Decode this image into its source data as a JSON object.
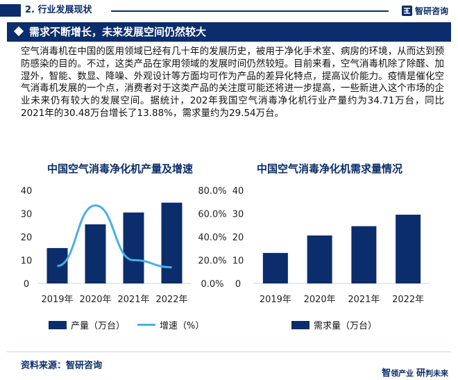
{
  "header": {
    "section_label": "2. 行业发展现状",
    "brand_name": "智研咨询"
  },
  "banner": {
    "title": "需求不断增长，未来发展空间仍然较大"
  },
  "body_text": "空气消毒机在中国的医用领域已经有几十年的发展历史，被用于净化手术室、病房的环境，从而达到预防感染的目的。不过，这类产品在家用领域的发展时间仍然较短。目前来看，空气消毒机除了除醛、加湿外，智能、数显、降噪、外观设计等方面均可作为产品的差异化特点，提高议价能力。疫情是催化空气消毒机发展的一个点，消费者对于这类产品的关注度可能还将进一步提高，一些新进入这个市场的企业未来仍有较大的发展空间。据统计，202年我国空气消毒净化机行业产量约为34.71万台，同比2021年的30.48万台增长了13.88%，需求量约为29.54万台。",
  "footer": {
    "source": "资料来源：智研咨询",
    "slogan_a1": "智",
    "slogan_a2": "领产业",
    "slogan_b1": "研",
    "slogan_b2": "判未来"
  },
  "colors": {
    "navy": "#0b2d6b",
    "line_blue": "#4aaee5"
  },
  "chart_data": [
    {
      "type": "bar",
      "title": "中国空气消毒净化机产量及增速",
      "categories": [
        "2019年",
        "2020年",
        "2021年",
        "2022年"
      ],
      "series": [
        {
          "name": "产量（万台）",
          "type": "bar",
          "axis": "left",
          "values": [
            15.2,
            25.4,
            30.48,
            34.71
          ]
        },
        {
          "name": "增速（%）",
          "type": "line",
          "axis": "right",
          "values": [
            0.15,
            0.67,
            0.2,
            0.1388
          ]
        }
      ],
      "y_left": {
        "ylim": [
          0,
          40
        ],
        "ticks": [
          "0",
          "10",
          "20",
          "30",
          "40"
        ]
      },
      "y_right": {
        "ylim": [
          0,
          0.8
        ],
        "ticks": [
          "0.0%",
          "20.0%",
          "40.0%",
          "60.0%",
          "80.0%"
        ]
      },
      "grid": false,
      "legend": "bottom"
    },
    {
      "type": "bar",
      "title": "中国空气消毒净化机需求量情况",
      "categories": [
        "2019年",
        "2020年",
        "2021年",
        "2022年"
      ],
      "series": [
        {
          "name": "需求量（万台）",
          "values": [
            13.1,
            20.6,
            24.6,
            29.54
          ]
        }
      ],
      "ylim": [
        0,
        40
      ],
      "yticks": [
        "0",
        "10",
        "20",
        "30",
        "40"
      ],
      "grid": false,
      "legend": "bottom"
    }
  ]
}
